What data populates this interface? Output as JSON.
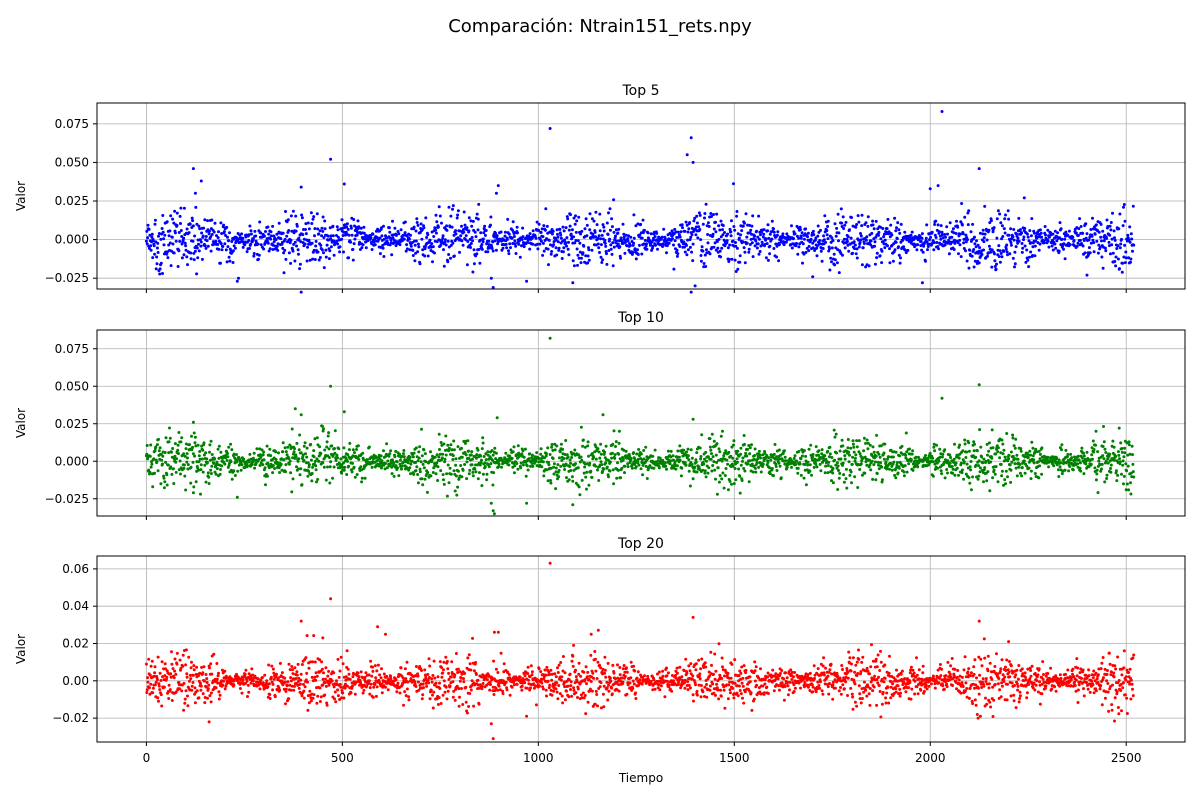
{
  "figure": {
    "suptitle": "Comparación: Ntrain151_rets.npy"
  },
  "chart_data": [
    {
      "type": "scatter",
      "title": "Top 5",
      "xlabel": "",
      "ylabel": "Valor",
      "color": "#0000ff",
      "xlim": [
        -126,
        2650
      ],
      "ylim": [
        -0.032,
        0.0885
      ],
      "xticks": [
        0,
        500,
        1000,
        1500,
        2000,
        2500
      ],
      "yticks": [
        -0.025,
        0.0,
        0.025,
        0.05,
        0.075
      ],
      "ytick_labels": [
        "−0.025",
        "0.000",
        "0.025",
        "0.050",
        "0.075"
      ],
      "grid": true,
      "n_points": 2520,
      "noise_sd": 0.0068,
      "seed": 5,
      "outliers": [
        {
          "x": 120,
          "y": 0.046
        },
        {
          "x": 125,
          "y": 0.03
        },
        {
          "x": 140,
          "y": 0.038
        },
        {
          "x": 232,
          "y": -0.027
        },
        {
          "x": 235,
          "y": -0.025
        },
        {
          "x": 395,
          "y": 0.034
        },
        {
          "x": 395,
          "y": -0.034
        },
        {
          "x": 470,
          "y": 0.052
        },
        {
          "x": 505,
          "y": 0.036
        },
        {
          "x": 880,
          "y": -0.025
        },
        {
          "x": 885,
          "y": -0.031
        },
        {
          "x": 893,
          "y": 0.03
        },
        {
          "x": 898,
          "y": 0.035
        },
        {
          "x": 970,
          "y": -0.027
        },
        {
          "x": 1030,
          "y": 0.072
        },
        {
          "x": 1088,
          "y": -0.028
        },
        {
          "x": 1380,
          "y": 0.055
        },
        {
          "x": 1390,
          "y": 0.066
        },
        {
          "x": 1395,
          "y": 0.05
        },
        {
          "x": 1390,
          "y": -0.034
        },
        {
          "x": 1400,
          "y": -0.03
        },
        {
          "x": 1700,
          "y": -0.024
        },
        {
          "x": 1980,
          "y": -0.028
        },
        {
          "x": 2000,
          "y": 0.033
        },
        {
          "x": 2020,
          "y": 0.035
        },
        {
          "x": 2030,
          "y": 0.083
        },
        {
          "x": 2125,
          "y": 0.046
        },
        {
          "x": 2240,
          "y": 0.027
        },
        {
          "x": 2400,
          "y": -0.023
        }
      ]
    },
    {
      "type": "scatter",
      "title": "Top 10",
      "xlabel": "",
      "ylabel": "Valor",
      "color": "#008000",
      "xlim": [
        -126,
        2650
      ],
      "ylim": [
        -0.0365,
        0.0875
      ],
      "xticks": [
        0,
        500,
        1000,
        1500,
        2000,
        2500
      ],
      "yticks": [
        -0.025,
        0.0,
        0.025,
        0.05,
        0.075
      ],
      "ytick_labels": [
        "−0.025",
        "0.000",
        "0.025",
        "0.050",
        "0.075"
      ],
      "grid": true,
      "n_points": 2520,
      "noise_sd": 0.0062,
      "seed": 10,
      "outliers": [
        {
          "x": 120,
          "y": 0.026
        },
        {
          "x": 120,
          "y": -0.021
        },
        {
          "x": 232,
          "y": -0.024
        },
        {
          "x": 380,
          "y": 0.035
        },
        {
          "x": 395,
          "y": 0.031
        },
        {
          "x": 470,
          "y": 0.05
        },
        {
          "x": 505,
          "y": 0.033
        },
        {
          "x": 880,
          "y": -0.028
        },
        {
          "x": 885,
          "y": -0.033
        },
        {
          "x": 888,
          "y": -0.035
        },
        {
          "x": 895,
          "y": 0.029
        },
        {
          "x": 970,
          "y": -0.028
        },
        {
          "x": 1030,
          "y": 0.082
        },
        {
          "x": 1088,
          "y": -0.029
        },
        {
          "x": 1165,
          "y": 0.031
        },
        {
          "x": 1395,
          "y": 0.028
        },
        {
          "x": 2030,
          "y": 0.042
        },
        {
          "x": 2125,
          "y": 0.051
        },
        {
          "x": 2500,
          "y": -0.019
        }
      ]
    },
    {
      "type": "scatter",
      "title": "Top 20",
      "xlabel": "Tiempo",
      "ylabel": "Valor",
      "color": "#ff0000",
      "xlim": [
        -126,
        2650
      ],
      "ylim": [
        -0.0328,
        0.0669
      ],
      "xticks": [
        0,
        500,
        1000,
        1500,
        2000,
        2500
      ],
      "yticks": [
        -0.02,
        0.0,
        0.02,
        0.04,
        0.06
      ],
      "ytick_labels": [
        "−0.02",
        "0.00",
        "0.02",
        "0.04",
        "0.06"
      ],
      "grid": true,
      "n_points": 2520,
      "noise_sd": 0.0052,
      "seed": 20,
      "outliers": [
        {
          "x": 160,
          "y": -0.022
        },
        {
          "x": 395,
          "y": 0.032
        },
        {
          "x": 450,
          "y": 0.023
        },
        {
          "x": 470,
          "y": 0.044
        },
        {
          "x": 590,
          "y": 0.029
        },
        {
          "x": 610,
          "y": 0.025
        },
        {
          "x": 880,
          "y": -0.023
        },
        {
          "x": 885,
          "y": -0.031
        },
        {
          "x": 888,
          "y": 0.026
        },
        {
          "x": 898,
          "y": 0.026
        },
        {
          "x": 970,
          "y": -0.019
        },
        {
          "x": 1030,
          "y": 0.063
        },
        {
          "x": 1090,
          "y": 0.019
        },
        {
          "x": 1135,
          "y": 0.025
        },
        {
          "x": 1395,
          "y": 0.034
        },
        {
          "x": 2125,
          "y": 0.032
        },
        {
          "x": 2200,
          "y": 0.021
        }
      ]
    }
  ]
}
